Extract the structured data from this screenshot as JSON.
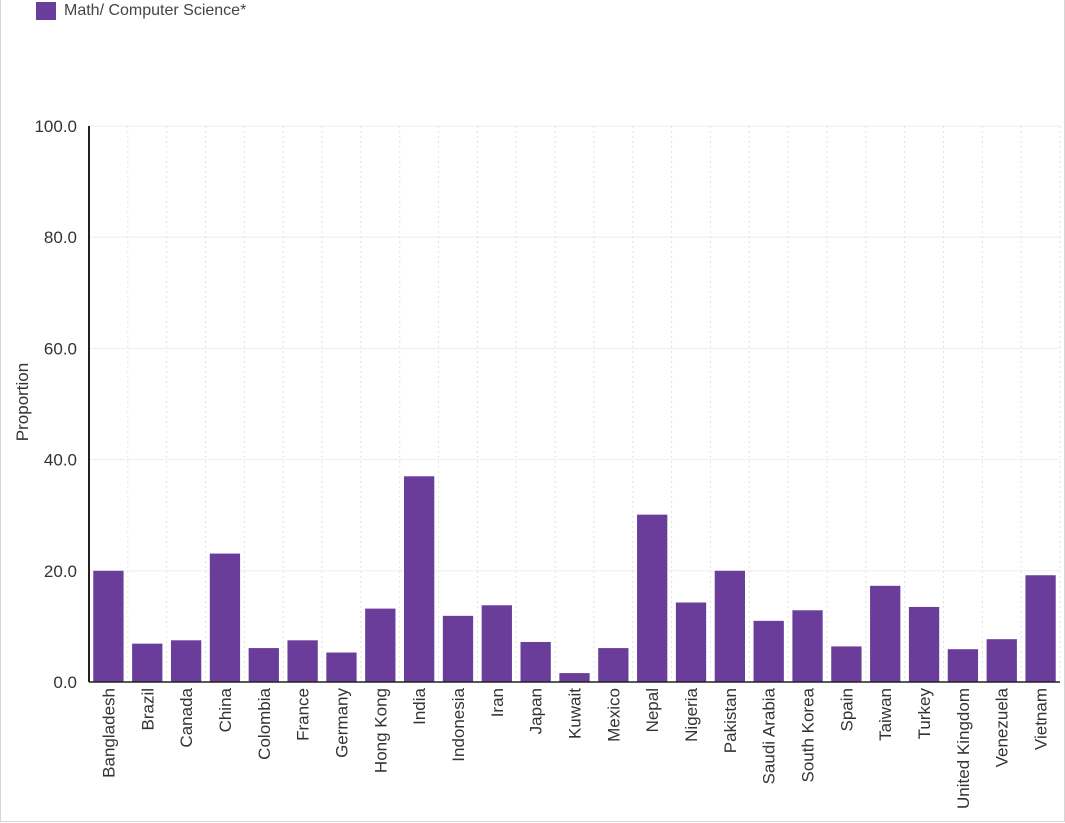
{
  "chart_data": {
    "type": "bar",
    "title": "",
    "xlabel": "",
    "ylabel": "Proportion",
    "ylim": [
      0,
      100
    ],
    "yticks": [
      "0.0",
      "20.0",
      "40.0",
      "60.0",
      "80.0",
      "100.0"
    ],
    "ytick_values": [
      0,
      20,
      40,
      60,
      80,
      100
    ],
    "grid": true,
    "legend_position": "top-left",
    "categories": [
      "Bangladesh",
      "Brazil",
      "Canada",
      "China",
      "Colombia",
      "France",
      "Germany",
      "Hong Kong",
      "India",
      "Indonesia",
      "Iran",
      "Japan",
      "Kuwait",
      "Mexico",
      "Nepal",
      "Nigeria",
      "Pakistan",
      "Saudi Arabia",
      "South Korea",
      "Spain",
      "Taiwan",
      "Turkey",
      "United Kingdom",
      "Venezuela",
      "Vietnam"
    ],
    "series": [
      {
        "name": "Math/ Computer Science*",
        "color": "#6a3d9a",
        "values": [
          20.0,
          6.9,
          7.5,
          23.1,
          6.1,
          7.5,
          5.3,
          13.2,
          37.0,
          11.9,
          13.8,
          7.2,
          1.6,
          6.1,
          30.1,
          14.3,
          20.0,
          11.0,
          12.9,
          6.4,
          17.3,
          13.5,
          5.9,
          7.7,
          19.2
        ]
      }
    ]
  }
}
